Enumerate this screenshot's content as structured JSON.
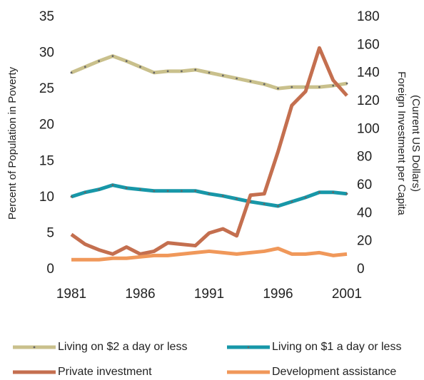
{
  "chart_data": {
    "type": "line",
    "y_label": "Percent of Population in Poverty",
    "y2_label": [
      "Foreign Investment per Capita",
      "(Current US Dollars)"
    ],
    "x": [
      1981,
      1982,
      1983,
      1984,
      1985,
      1986,
      1987,
      1988,
      1989,
      1990,
      1991,
      1992,
      1993,
      1994,
      1995,
      1996,
      1997,
      1998,
      1999,
      2000,
      2001
    ],
    "xlim": [
      1981,
      2001
    ],
    "xticks": [
      1981,
      1986,
      1991,
      1996,
      2001
    ],
    "ylim": [
      0,
      35
    ],
    "yticks": [
      0,
      5,
      10,
      15,
      20,
      25,
      30,
      35
    ],
    "y2lim": [
      0,
      180
    ],
    "y2ticks": [
      0,
      20,
      40,
      60,
      80,
      100,
      120,
      140,
      160,
      180
    ],
    "grid": false,
    "series": [
      {
        "name": "Living on $2 a day or less",
        "color": "#c9c08c",
        "markers": true,
        "values": [
          27.3,
          28.1,
          28.9,
          29.6,
          28.9,
          28.1,
          27.3,
          27.5,
          27.5,
          27.7,
          27.3,
          26.9,
          26.5,
          26.1,
          25.7,
          25.1,
          25.3,
          25.3,
          25.3,
          25.5,
          25.8
        ]
      },
      {
        "name": "Living on $1 a day or less",
        "color": "#1797a8",
        "markers": true,
        "values": [
          10.1,
          10.7,
          11.1,
          11.7,
          11.3,
          11.1,
          10.9,
          10.9,
          10.9,
          10.9,
          10.5,
          10.2,
          9.8,
          9.4,
          9.1,
          8.8,
          9.4,
          10.0,
          10.7,
          10.7,
          10.5
        ]
      },
      {
        "name": "Private investment",
        "color": "#c46f4f",
        "axis": "y2",
        "markers": false,
        "values": [
          25,
          18,
          14,
          11,
          16,
          11,
          13,
          19,
          18,
          17,
          26,
          29,
          24,
          53,
          54,
          84,
          117,
          127,
          158,
          135,
          124
        ]
      },
      {
        "name": "Development assistance",
        "color": "#f0985a",
        "axis": "y2",
        "markers": false,
        "values": [
          7,
          7,
          7,
          8,
          8,
          9,
          10,
          10,
          11,
          12,
          13,
          12,
          11,
          12,
          13,
          15,
          11,
          11,
          12,
          10,
          11
        ]
      }
    ]
  }
}
